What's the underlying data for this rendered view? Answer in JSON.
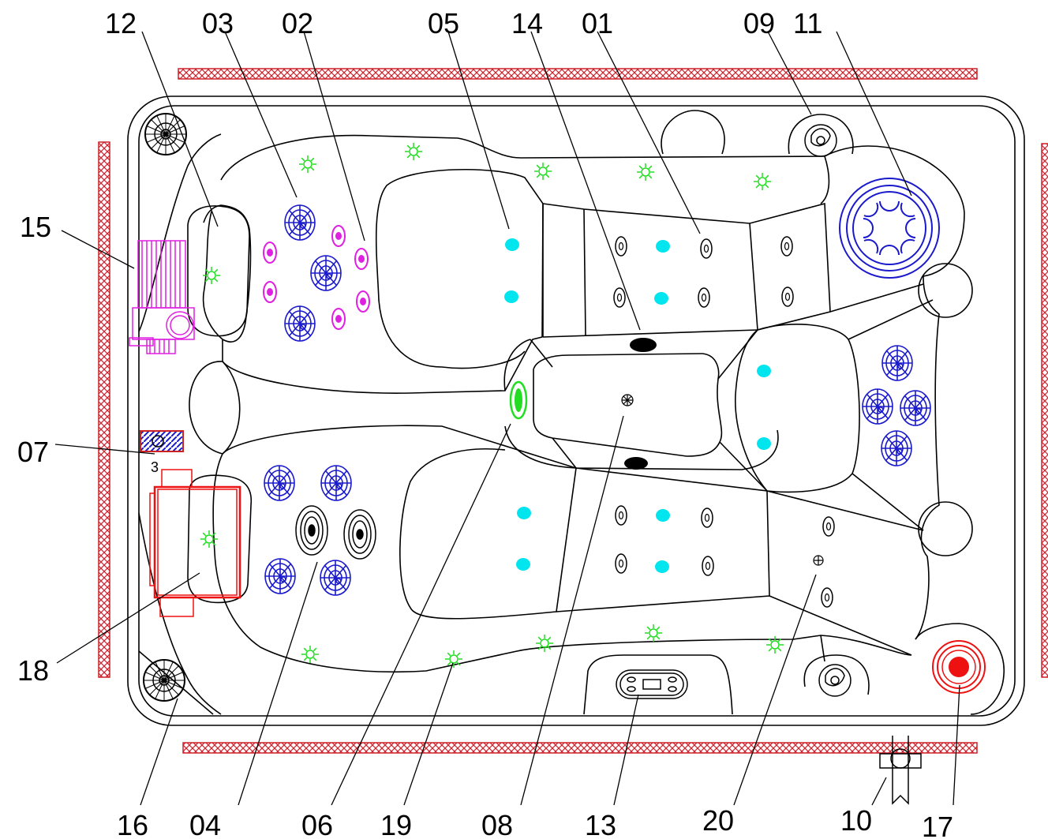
{
  "callouts": [
    {
      "id": "c12",
      "text": "12"
    },
    {
      "id": "c03",
      "text": "03"
    },
    {
      "id": "c02",
      "text": "02"
    },
    {
      "id": "c05",
      "text": "05"
    },
    {
      "id": "c14",
      "text": "14"
    },
    {
      "id": "c01",
      "text": "01"
    },
    {
      "id": "c09",
      "text": "09"
    },
    {
      "id": "c11",
      "text": "11"
    },
    {
      "id": "c15",
      "text": "15"
    },
    {
      "id": "c07",
      "text": "07"
    },
    {
      "id": "c18",
      "text": "18"
    },
    {
      "id": "c16",
      "text": "16"
    },
    {
      "id": "c04",
      "text": "04"
    },
    {
      "id": "c06",
      "text": "06"
    },
    {
      "id": "c19",
      "text": "19"
    },
    {
      "id": "c08",
      "text": "08"
    },
    {
      "id": "c13",
      "text": "13"
    },
    {
      "id": "c20",
      "text": "20"
    },
    {
      "id": "c10",
      "text": "10"
    },
    {
      "id": "c17",
      "text": "17"
    }
  ],
  "marker_text": "3",
  "colors": {
    "outline": "#000000",
    "hatch": "#d0202a",
    "jet_blue": "#1a1acc",
    "jet_magenta": "#e020e0",
    "led_green": "#22dd22",
    "air_cyan": "#00e5ee",
    "heater_red": "#ee1111"
  }
}
